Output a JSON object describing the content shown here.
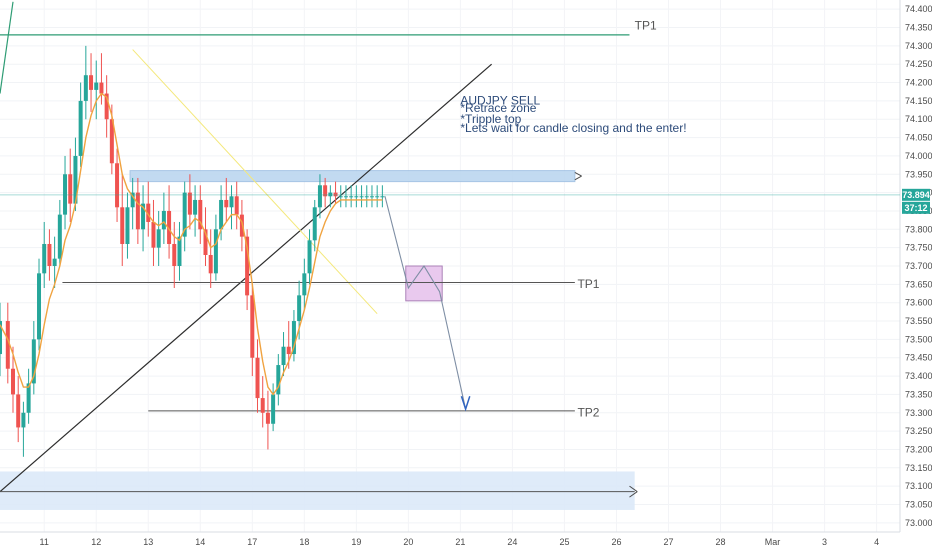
{
  "chart_data": {
    "type": "candlestick",
    "title": "",
    "xlabel": "",
    "ylabel": "",
    "symbol": "AUDJPY",
    "ylim": [
      72.975,
      74.425
    ],
    "y_ticks": [
      73.0,
      73.05,
      73.1,
      73.15,
      73.2,
      73.25,
      73.3,
      73.35,
      73.4,
      73.45,
      73.5,
      73.55,
      73.6,
      73.65,
      73.7,
      73.75,
      73.8,
      73.85,
      73.9,
      73.95,
      74.0,
      74.05,
      74.1,
      74.15,
      74.2,
      74.25,
      74.3,
      74.35,
      74.4
    ],
    "x_ticks": [
      "11",
      "12",
      "13",
      "14",
      "17",
      "18",
      "19",
      "20",
      "21",
      "24",
      "25",
      "26",
      "27",
      "28",
      "Mar",
      "3",
      "4"
    ],
    "x_tick_index": [
      0,
      1,
      2,
      3,
      4,
      5,
      6,
      7,
      8,
      9,
      10,
      11,
      12,
      13,
      14,
      15,
      16
    ],
    "x_range": [
      -0.85,
      16.45
    ],
    "grid": true,
    "current_price": {
      "price_label": "73.894",
      "countdown_label": "37:12",
      "value": 73.894,
      "color": "#26a69a"
    },
    "candle_x_index": [
      -0.85,
      -0.7,
      -0.6,
      -0.5,
      -0.4,
      -0.3,
      -0.2,
      -0.1,
      0.0,
      0.1,
      0.2,
      0.3,
      0.4,
      0.5,
      0.6,
      0.7,
      0.8,
      0.9,
      1.0,
      1.1,
      1.2,
      1.3,
      1.4,
      1.5,
      1.6,
      1.7,
      1.8,
      1.9,
      2.0,
      2.1,
      2.2,
      2.3,
      2.4,
      2.5,
      2.6,
      2.7,
      2.8,
      2.9,
      3.0,
      3.1,
      3.2,
      3.3,
      3.4,
      3.5,
      3.6,
      3.7,
      3.8,
      3.9,
      4.0,
      4.1,
      4.2,
      4.3,
      4.4,
      4.5,
      4.6,
      4.7,
      4.8,
      4.9,
      5.0,
      5.1,
      5.2,
      5.3,
      5.4,
      5.5,
      5.6,
      5.7,
      5.8,
      5.9,
      6.0,
      6.1,
      6.2,
      6.3,
      6.4,
      6.5
    ],
    "ohlc": [
      [
        73.46,
        73.6,
        73.4,
        73.55
      ],
      [
        73.55,
        73.6,
        73.38,
        73.42
      ],
      [
        73.42,
        73.48,
        73.3,
        73.35
      ],
      [
        73.35,
        73.4,
        73.22,
        73.26
      ],
      [
        73.26,
        73.33,
        73.18,
        73.3
      ],
      [
        73.3,
        73.42,
        73.27,
        73.38
      ],
      [
        73.38,
        73.55,
        73.35,
        73.5
      ],
      [
        73.5,
        73.72,
        73.47,
        73.68
      ],
      [
        73.68,
        73.82,
        73.64,
        73.76
      ],
      [
        73.76,
        73.8,
        73.66,
        73.7
      ],
      [
        73.7,
        73.78,
        73.64,
        73.72
      ],
      [
        73.72,
        73.88,
        73.7,
        73.84
      ],
      [
        73.84,
        74.0,
        73.8,
        73.95
      ],
      [
        73.95,
        74.02,
        73.82,
        73.87
      ],
      [
        73.87,
        74.05,
        73.85,
        74.0
      ],
      [
        74.0,
        74.2,
        73.97,
        74.15
      ],
      [
        74.15,
        74.3,
        74.1,
        74.22
      ],
      [
        74.22,
        74.28,
        74.12,
        74.18
      ],
      [
        74.18,
        74.26,
        74.1,
        74.2
      ],
      [
        74.2,
        74.28,
        74.14,
        74.17
      ],
      [
        74.17,
        74.22,
        74.05,
        74.1
      ],
      [
        74.1,
        74.14,
        73.95,
        73.98
      ],
      [
        73.98,
        74.02,
        73.82,
        73.86
      ],
      [
        73.86,
        73.95,
        73.7,
        73.76
      ],
      [
        73.76,
        73.9,
        73.72,
        73.86
      ],
      [
        73.86,
        73.94,
        73.8,
        73.9
      ],
      [
        73.9,
        73.94,
        73.76,
        73.8
      ],
      [
        73.8,
        73.92,
        73.74,
        73.87
      ],
      [
        73.87,
        73.93,
        73.78,
        73.82
      ],
      [
        73.82,
        73.88,
        73.7,
        73.75
      ],
      [
        73.75,
        73.85,
        73.7,
        73.8
      ],
      [
        73.8,
        73.9,
        73.76,
        73.85
      ],
      [
        73.85,
        73.92,
        73.72,
        73.76
      ],
      [
        73.76,
        73.82,
        73.64,
        73.7
      ],
      [
        73.7,
        73.82,
        73.66,
        73.78
      ],
      [
        73.78,
        73.93,
        73.74,
        73.9
      ],
      [
        73.9,
        73.95,
        73.8,
        73.84
      ],
      [
        73.84,
        73.92,
        73.78,
        73.88
      ],
      [
        73.88,
        73.92,
        73.76,
        73.8
      ],
      [
        73.8,
        73.86,
        73.7,
        73.73
      ],
      [
        73.73,
        73.8,
        73.64,
        73.68
      ],
      [
        73.68,
        73.84,
        73.66,
        73.8
      ],
      [
        73.8,
        73.92,
        73.77,
        73.88
      ],
      [
        73.88,
        73.94,
        73.82,
        73.86
      ],
      [
        73.86,
        73.92,
        73.8,
        73.89
      ],
      [
        73.89,
        73.93,
        73.8,
        73.84
      ],
      [
        73.84,
        73.88,
        73.74,
        73.78
      ],
      [
        73.78,
        73.8,
        73.58,
        73.62
      ],
      [
        73.62,
        73.65,
        73.4,
        73.45
      ],
      [
        73.45,
        73.5,
        73.3,
        73.34
      ],
      [
        73.34,
        73.4,
        73.26,
        73.3
      ],
      [
        73.3,
        73.36,
        73.2,
        73.27
      ],
      [
        73.27,
        73.38,
        73.25,
        73.35
      ],
      [
        73.35,
        73.46,
        73.32,
        73.43
      ],
      [
        73.43,
        73.52,
        73.4,
        73.48
      ],
      [
        73.48,
        73.55,
        73.42,
        73.46
      ],
      [
        73.46,
        73.58,
        73.44,
        73.55
      ],
      [
        73.55,
        73.66,
        73.5,
        73.62
      ],
      [
        73.62,
        73.72,
        73.58,
        73.68
      ],
      [
        73.68,
        73.8,
        73.65,
        73.77
      ],
      [
        73.77,
        73.88,
        73.74,
        73.86
      ],
      [
        73.86,
        73.95,
        73.83,
        73.92
      ],
      [
        73.92,
        73.94,
        73.86,
        73.89
      ],
      [
        73.89,
        73.92,
        73.86,
        73.9
      ],
      [
        73.9,
        73.93,
        73.87,
        73.89
      ],
      [
        73.89,
        73.92,
        73.86,
        73.89
      ],
      [
        73.89,
        73.92,
        73.86,
        73.89
      ],
      [
        73.89,
        73.92,
        73.86,
        73.89
      ],
      [
        73.89,
        73.92,
        73.86,
        73.89
      ],
      [
        73.89,
        73.92,
        73.86,
        73.89
      ],
      [
        73.89,
        73.92,
        73.86,
        73.89
      ],
      [
        73.89,
        73.92,
        73.86,
        73.89
      ],
      [
        73.89,
        73.92,
        73.86,
        73.89
      ],
      [
        73.89,
        73.92,
        73.86,
        73.89
      ]
    ],
    "candle_colors": {
      "up": "#26a69a",
      "down": "#ef5350"
    },
    "moving_average": {
      "color": "#f0a340",
      "values": [
        73.54,
        73.5,
        73.46,
        73.41,
        73.37,
        73.37,
        73.4,
        73.46,
        73.54,
        73.61,
        73.65,
        73.7,
        73.77,
        73.81,
        73.87,
        73.96,
        74.05,
        74.11,
        74.15,
        74.17,
        74.16,
        74.11,
        74.03,
        73.95,
        73.91,
        73.89,
        73.87,
        73.86,
        73.84,
        73.82,
        73.81,
        73.82,
        73.8,
        73.78,
        73.77,
        73.8,
        73.81,
        73.83,
        73.82,
        73.79,
        73.75,
        73.76,
        73.8,
        73.82,
        73.84,
        73.84,
        73.82,
        73.75,
        73.65,
        73.53,
        73.44,
        73.37,
        73.35,
        73.37,
        73.41,
        73.44,
        73.48,
        73.53,
        73.58,
        73.64,
        73.71,
        73.78,
        73.82,
        73.85,
        73.87,
        73.88,
        73.88,
        73.88,
        73.88,
        73.88,
        73.88,
        73.88,
        73.88,
        73.88
      ]
    },
    "annotations": {
      "note_lines": [
        "AUDJPY SELL",
        "*Retrace zone",
        "*Tripple top",
        "*Lets wait for candle closing and the enter!"
      ],
      "tp_labels": [
        "TP1",
        "TP1",
        "TP2"
      ],
      "horizontal_levels": [
        74.33,
        73.655,
        73.305,
        73.085
      ],
      "zones": [
        {
          "name": "resistance-zone",
          "x0": 1.65,
          "x1": 10.2,
          "y0": 73.93,
          "y1": 73.96,
          "color": "#bcd7f0"
        },
        {
          "name": "demand-zone",
          "x0": -0.85,
          "x1": 11.35,
          "y0": 73.035,
          "y1": 73.14,
          "color": "#dbe9f8"
        },
        {
          "name": "entry-box",
          "x0": 6.95,
          "x1": 7.65,
          "y0": 73.605,
          "y1": 73.7,
          "color": "#e8c7ee"
        }
      ]
    }
  }
}
